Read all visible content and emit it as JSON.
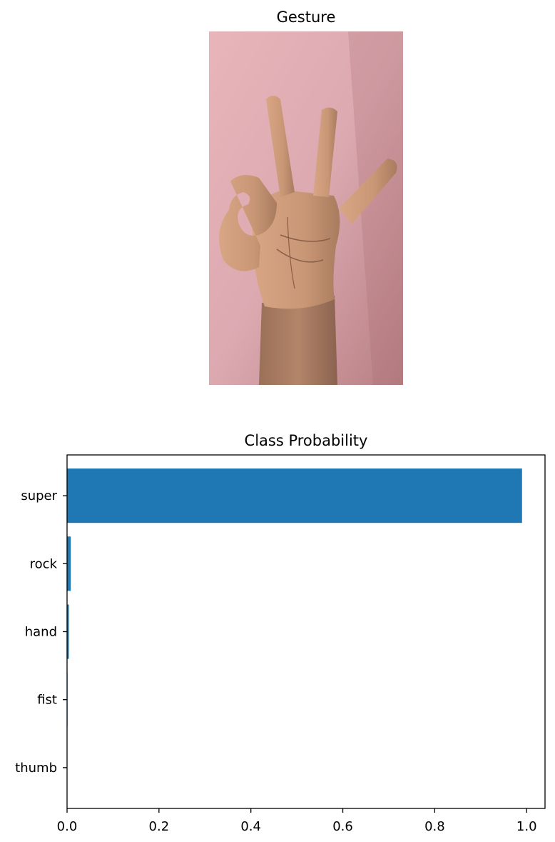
{
  "gesture_panel": {
    "title": "Gesture",
    "image": "photo of a hand making an OK gesture against a pink wall"
  },
  "chart_data": {
    "type": "bar",
    "orientation": "horizontal",
    "title": "Class Probability",
    "xlabel": "",
    "ylabel": "",
    "categories": [
      "super",
      "rock",
      "hand",
      "fist",
      "thumb"
    ],
    "values": [
      0.99,
      0.008,
      0.004,
      0.001,
      0.0005
    ],
    "xlim": [
      0.0,
      1.04
    ],
    "xticks": [
      "0.0",
      "0.2",
      "0.4",
      "0.6",
      "0.8",
      "1.0"
    ],
    "grid": false,
    "bar_color": "#1f77b4"
  }
}
